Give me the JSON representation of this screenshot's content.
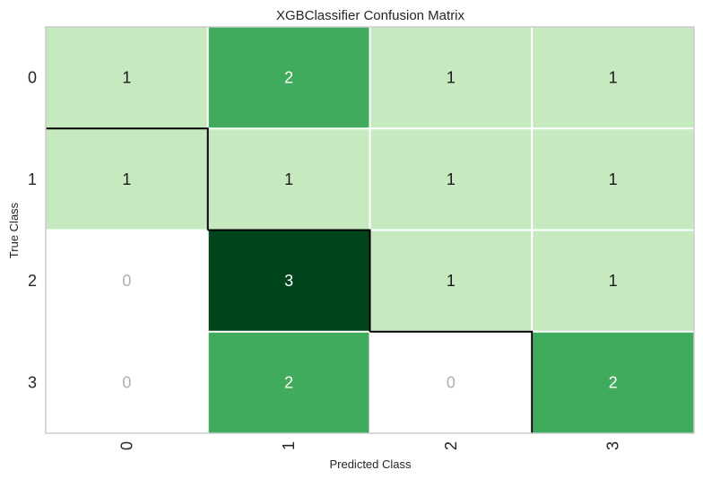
{
  "chart_data": {
    "type": "heatmap",
    "title": "XGBClassifier Confusion Matrix",
    "xlabel": "Predicted Class",
    "ylabel": "True Class",
    "x_categories": [
      "0",
      "1",
      "2",
      "3"
    ],
    "y_categories": [
      "0",
      "1",
      "2",
      "3"
    ],
    "values": [
      [
        1,
        2,
        1,
        1
      ],
      [
        1,
        1,
        1,
        1
      ],
      [
        0,
        3,
        1,
        1
      ],
      [
        0,
        2,
        0,
        2
      ]
    ],
    "colors": {
      "zero": "#ffffff",
      "low": "#c7e9c0",
      "mid": "#41ab5d",
      "high": "#00441b",
      "zero_text": "#b0b0b0",
      "dark_text": "#1a1a1a",
      "light_text": "#ffffff",
      "grid": "#ffffff",
      "diagonal_outline": "#000000",
      "frame": "#cccccc"
    },
    "diagonal_outlined": true,
    "grid": true
  }
}
